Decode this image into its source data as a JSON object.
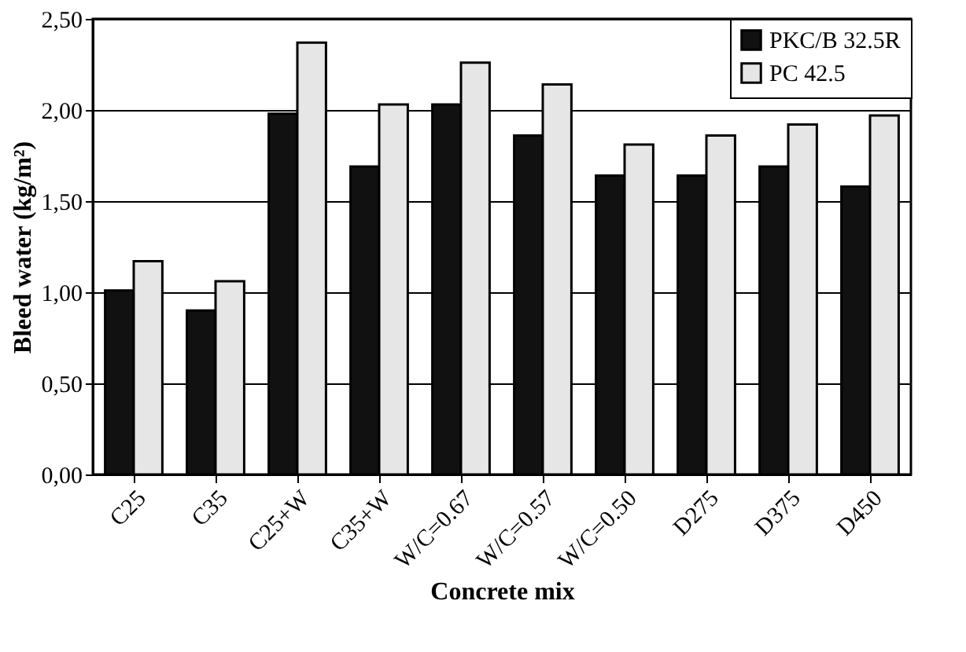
{
  "chart_data": {
    "type": "bar",
    "xlabel": "Concrete mix",
    "ylabel": "Bleed water (kg/m²)",
    "categories": [
      "C25",
      "C35",
      "C25+W",
      "C35+W",
      "W/C=0.67",
      "W/C=0.57",
      "W/C=0.50",
      "D275",
      "D375",
      "D450"
    ],
    "series": [
      {
        "name": "PKC/B 32.5R",
        "color": "#111111",
        "values": [
          1.01,
          0.9,
          1.98,
          1.69,
          2.03,
          1.86,
          1.64,
          1.64,
          1.69,
          1.58
        ]
      },
      {
        "name": "PC 42.5",
        "color": "#e6e6e6",
        "values": [
          1.17,
          1.06,
          2.37,
          2.03,
          2.26,
          2.14,
          1.81,
          1.86,
          1.92,
          1.97
        ]
      }
    ],
    "ylim": [
      0,
      2.5
    ],
    "yticks": [
      {
        "value": 0,
        "label": "0,00"
      },
      {
        "value": 0.5,
        "label": "0,50"
      },
      {
        "value": 1,
        "label": "1,00"
      },
      {
        "value": 1.5,
        "label": "1,50"
      },
      {
        "value": 2,
        "label": "2,00"
      },
      {
        "value": 2.5,
        "label": "2,50"
      }
    ],
    "grid": "y",
    "legend": "top right"
  }
}
